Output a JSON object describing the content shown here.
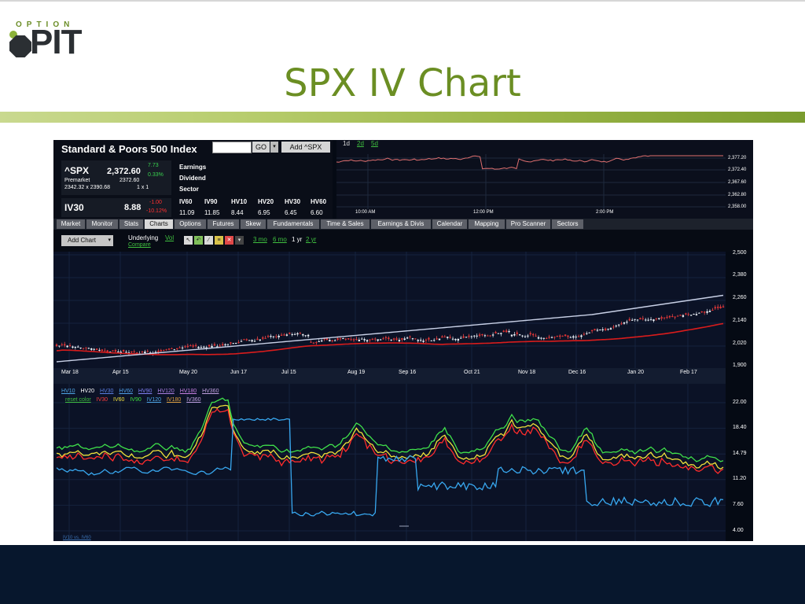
{
  "slide": {
    "logo_small": "OPTION",
    "logo_big": "PIT",
    "title": "SPX IV Chart"
  },
  "app": {
    "index_title": "Standard & Poors 500 Index",
    "symbol_input": "",
    "go_label": "GO",
    "add_label": "Add ^SPX",
    "quote": {
      "symbol": "^SPX",
      "price": "2,372.60",
      "change": "7.73",
      "change_pct": "0.33%",
      "session": "Premarket",
      "session_price": "2372.60",
      "bid_ask": "2342.32 x 2390.68",
      "size": "1 x 1"
    },
    "iv30": {
      "label": "IV30",
      "value": "8.88",
      "change": "-1.00",
      "change_pct": "-10.12%"
    },
    "fields": [
      "Earnings",
      "Dividend",
      "Sector"
    ],
    "vol_table": {
      "headers": [
        "IV60",
        "IV90",
        "HV10",
        "HV20",
        "HV30",
        "HV60"
      ],
      "values": [
        "11.09",
        "11.85",
        "8.44",
        "6.95",
        "6.45",
        "6.60"
      ]
    },
    "intraday": {
      "ranges": [
        "1d",
        "2d",
        "5d"
      ],
      "times": [
        "10:00 AM",
        "12:00 PM",
        "2:00 PM"
      ],
      "prices": [
        "2,377.20",
        "2,372.40",
        "2,367.60",
        "2,362.80",
        "2,358.00"
      ]
    },
    "tabs": [
      "Market",
      "Monitor",
      "Stats",
      "Charts",
      "Options",
      "Futures",
      "Skew",
      "Fundamentals",
      "Time & Sales",
      "Earnings & Divis",
      "Calendar",
      "Mapping",
      "Pro Scanner",
      "Sectors"
    ],
    "active_tab": "Charts",
    "toolbar": {
      "add_chart": "Add Chart",
      "underlying": "Underlying",
      "vol": "Vol",
      "compare": "Compare",
      "ranges": [
        "3 mo",
        "6 mo",
        "1 yr",
        "2 yr"
      ],
      "active_range": "1 yr"
    },
    "price_chart": {
      "dates": [
        "Mar 18",
        "Apr 15",
        "May 20",
        "Jun 17",
        "Jul 15",
        "Aug 19",
        "Sep 16",
        "Oct 21",
        "Nov 18",
        "Dec 16",
        "Jan 20",
        "Feb 17"
      ],
      "yticks": [
        "2,500",
        "2,380",
        "2,260",
        "2,140",
        "2,020",
        "1,900"
      ]
    },
    "vol_chart": {
      "legend_row1": [
        "HV10",
        "HV20",
        "HV30",
        "HV60",
        "HV90",
        "HV120",
        "HV180",
        "HV360"
      ],
      "legend_row2": [
        "reset color",
        "IV30",
        "IV60",
        "IV90",
        "IV120",
        "IV180",
        "IV360"
      ],
      "yticks": [
        "22.00",
        "18.40",
        "14.79",
        "11.20",
        "7.60",
        "4.00"
      ],
      "footer_label": "IV10 vs. IV60"
    }
  },
  "colors": {
    "accent_green": "#6b8e23",
    "footer_navy": "#07172d",
    "up": "#39d34f",
    "down": "#ff3030"
  }
}
